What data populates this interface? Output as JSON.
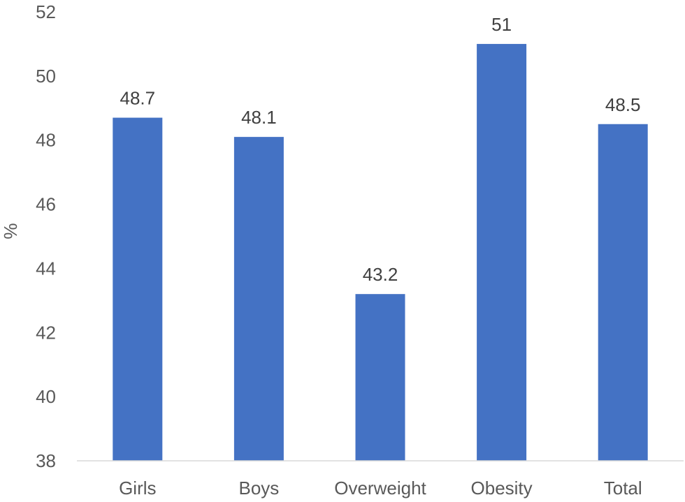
{
  "chart_data": {
    "type": "bar",
    "title": "",
    "xlabel": "",
    "ylabel": "%",
    "categories": [
      "Girls",
      "Boys",
      "Overweight",
      "Obesity",
      "Total"
    ],
    "values": [
      48.7,
      48.1,
      43.2,
      51,
      48.5
    ],
    "data_labels": [
      "48.7",
      "48.1",
      "43.2",
      "51",
      "48.5"
    ],
    "ylim": [
      38,
      52
    ],
    "yticks": [
      38,
      40,
      42,
      44,
      46,
      48,
      50,
      52
    ],
    "grid": false,
    "legend": "none",
    "bar_color": "#4472C4",
    "axis_color": "#D9D9D9"
  }
}
